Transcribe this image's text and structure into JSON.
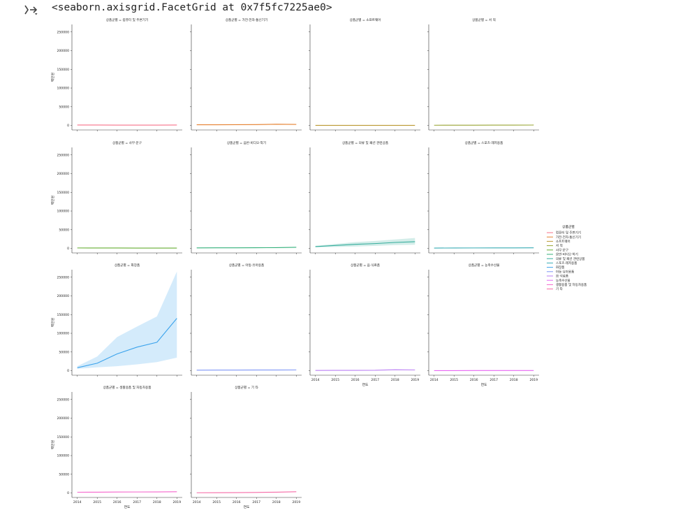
{
  "output": {
    "icon": "output-toggle-icon",
    "text": "<seaborn.axisgrid.FacetGrid at 0x7f5fc7225ae0>"
  },
  "chart_data": {
    "type": "line",
    "facet_variable": "상품군별",
    "title_separator": " = ",
    "xlabel": "연도",
    "ylabel": "백만원",
    "x": [
      2014,
      2015,
      2016,
      2017,
      2018,
      2019
    ],
    "xticks": [
      "2014",
      "2015",
      "2016",
      "2017",
      "2018",
      "2019"
    ],
    "yticks": [
      0,
      50000,
      100000,
      150000,
      200000,
      250000
    ],
    "ylim": [
      -12000,
      270000
    ],
    "legend": {
      "title": "상품군별",
      "location": "center-right"
    },
    "series": [
      {
        "name": "컴퓨터 및 주변기기",
        "color": "#f77189",
        "values": [
          1200,
          1100,
          1000,
          900,
          1000,
          1100
        ],
        "band": [
          [
            800,
            1600
          ],
          [
            700,
            1500
          ],
          [
            600,
            1400
          ],
          [
            500,
            1300
          ],
          [
            600,
            1400
          ],
          [
            700,
            1500
          ]
        ]
      },
      {
        "name": "가전·전자·통신기기",
        "color": "#e5802f",
        "values": [
          1800,
          1900,
          2100,
          2300,
          3200,
          2800
        ],
        "band": [
          [
            1200,
            2400
          ],
          [
            1300,
            2500
          ],
          [
            1400,
            2800
          ],
          [
            1500,
            3100
          ],
          [
            2200,
            4200
          ],
          [
            1900,
            3700
          ]
        ]
      },
      {
        "name": "소프트웨어",
        "color": "#bb9832",
        "values": [
          200,
          200,
          200,
          200,
          200,
          200
        ],
        "band": [
          [
            100,
            300
          ],
          [
            100,
            300
          ],
          [
            100,
            300
          ],
          [
            100,
            300
          ],
          [
            100,
            300
          ],
          [
            100,
            300
          ]
        ]
      },
      {
        "name": "서 적",
        "color": "#97a431",
        "values": [
          600,
          700,
          800,
          900,
          1000,
          1100
        ],
        "band": [
          [
            400,
            800
          ],
          [
            500,
            900
          ],
          [
            600,
            1000
          ],
          [
            700,
            1100
          ],
          [
            800,
            1200
          ],
          [
            900,
            1300
          ]
        ]
      },
      {
        "name": "사무·문구",
        "color": "#65ad31",
        "values": [
          1300,
          1200,
          1100,
          1000,
          1000,
          900
        ],
        "band": [
          [
            900,
            1700
          ],
          [
            800,
            1600
          ],
          [
            700,
            1500
          ],
          [
            700,
            1400
          ],
          [
            700,
            1300
          ],
          [
            600,
            1200
          ]
        ]
      },
      {
        "name": "음반·비디오·악기",
        "color": "#33b07a",
        "values": [
          1500,
          1600,
          1700,
          1800,
          2200,
          3000
        ],
        "band": [
          [
            1100,
            1900
          ],
          [
            1200,
            2000
          ],
          [
            1300,
            2100
          ],
          [
            1400,
            2300
          ],
          [
            1700,
            2800
          ],
          [
            2300,
            3800
          ]
        ]
      },
      {
        "name": "의류 및 패션 관련상품",
        "color": "#35ad9c",
        "values": [
          5000,
          8000,
          11000,
          13000,
          16000,
          18000
        ],
        "band": [
          [
            3000,
            7000
          ],
          [
            4000,
            12000
          ],
          [
            5000,
            17000
          ],
          [
            7000,
            20000
          ],
          [
            9000,
            24000
          ],
          [
            10000,
            28000
          ]
        ]
      },
      {
        "name": "스포츠·레저용품",
        "color": "#37abb4",
        "values": [
          1000,
          1200,
          1300,
          1400,
          1500,
          1700
        ],
        "band": [
          [
            700,
            1300
          ],
          [
            900,
            1500
          ],
          [
            1000,
            1600
          ],
          [
            1100,
            1700
          ],
          [
            1200,
            1800
          ],
          [
            1400,
            2000
          ]
        ]
      },
      {
        "name": "화장품",
        "color": "#3ba3ec",
        "values": [
          8000,
          20000,
          45000,
          63000,
          76000,
          140000
        ],
        "band": [
          [
            5000,
            12000
          ],
          [
            9000,
            38000
          ],
          [
            12000,
            90000
          ],
          [
            17000,
            118000
          ],
          [
            23000,
            145000
          ],
          [
            35000,
            265000
          ]
        ]
      },
      {
        "name": "아동·유아용품",
        "color": "#7d95f6",
        "values": [
          1500,
          1600,
          1700,
          1800,
          1900,
          2000
        ],
        "band": [
          [
            1100,
            1900
          ],
          [
            1200,
            2000
          ],
          [
            1300,
            2100
          ],
          [
            1400,
            2200
          ],
          [
            1500,
            2300
          ],
          [
            1600,
            2400
          ]
        ]
      },
      {
        "name": "음·식료품",
        "color": "#ba7ef4",
        "values": [
          800,
          900,
          1000,
          1100,
          2500,
          2000
        ],
        "band": [
          [
            500,
            1100
          ],
          [
            600,
            1200
          ],
          [
            700,
            1300
          ],
          [
            800,
            1400
          ],
          [
            1800,
            3200
          ],
          [
            1400,
            2600
          ]
        ]
      },
      {
        "name": "농축수산물",
        "color": "#e866f4",
        "values": [
          300,
          300,
          400,
          400,
          500,
          500
        ],
        "band": [
          [
            200,
            400
          ],
          [
            200,
            400
          ],
          [
            300,
            500
          ],
          [
            300,
            500
          ],
          [
            400,
            600
          ],
          [
            400,
            600
          ]
        ]
      },
      {
        "name": "생활용품 및 자동차용품",
        "color": "#f565cc",
        "values": [
          2000,
          2200,
          2500,
          2700,
          2900,
          3200
        ],
        "band": [
          [
            1500,
            2500
          ],
          [
            1700,
            2700
          ],
          [
            2000,
            3000
          ],
          [
            2200,
            3200
          ],
          [
            2400,
            3400
          ],
          [
            2700,
            3700
          ]
        ]
      },
      {
        "name": "기 타",
        "color": "#f56aa6",
        "values": [
          600,
          700,
          900,
          1500,
          2200,
          3200
        ],
        "band": [
          [
            400,
            800
          ],
          [
            500,
            900
          ],
          [
            700,
            1100
          ],
          [
            1200,
            1800
          ],
          [
            1800,
            2600
          ],
          [
            2600,
            3800
          ]
        ]
      }
    ]
  }
}
